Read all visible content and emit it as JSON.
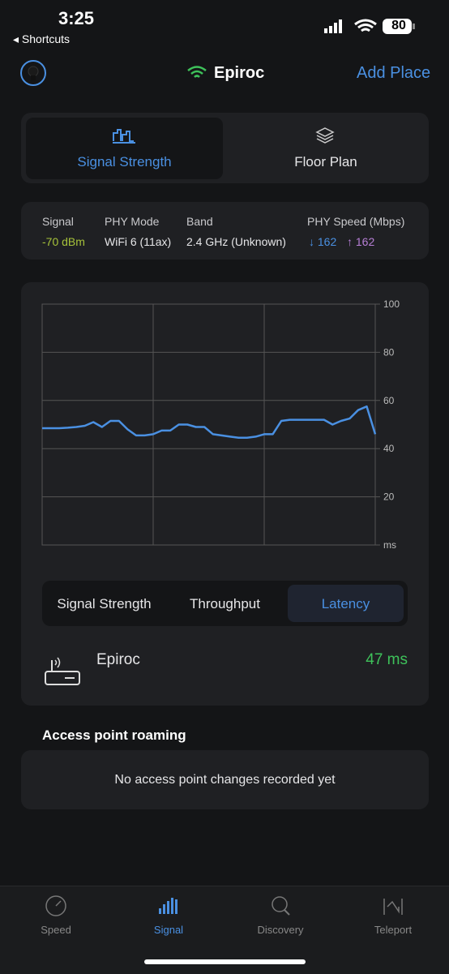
{
  "status": {
    "time": "3:25",
    "back": "Shortcuts",
    "battery": "80"
  },
  "header": {
    "network": "Epiroc",
    "action": "Add Place"
  },
  "tabs": [
    "Signal Strength",
    "Floor Plan"
  ],
  "info": [
    {
      "label": "Signal",
      "value": "-70 dBm"
    },
    {
      "label": "PHY Mode",
      "value": "WiFi 6 (11ax)"
    },
    {
      "label": "Band",
      "value": "2.4 GHz (Unknown)"
    },
    {
      "label": "PHY Speed (Mbps)",
      "down": "↓ 162",
      "up": "↑ 162"
    }
  ],
  "chart_data": {
    "type": "line",
    "color": "#4a90e2",
    "values": [
      48.5,
      48.5,
      48.5,
      48.7,
      49,
      49.5,
      51,
      49,
      51.5,
      51.5,
      48,
      45.5,
      45.5,
      46,
      47.5,
      47.5,
      50,
      50,
      49,
      49,
      46,
      45.5,
      45,
      44.5,
      44.5,
      45,
      46,
      46,
      51.5,
      52,
      52,
      52,
      52,
      52,
      50,
      51.5,
      52.5,
      56,
      57.5,
      46
    ],
    "ylim": [
      0,
      100
    ],
    "yticks": [
      {
        "value": 0,
        "label": "ms"
      },
      20,
      40,
      60,
      80,
      100
    ],
    "grid": true
  },
  "metric_tabs": [
    "Signal Strength",
    "Throughput",
    "Latency"
  ],
  "device": {
    "name": "Epiroc",
    "value": "47 ms"
  },
  "roaming": {
    "title": "Access point roaming",
    "message": "No access point changes recorded yet"
  },
  "nav": [
    "Speed",
    "Signal",
    "Discovery",
    "Teleport"
  ]
}
